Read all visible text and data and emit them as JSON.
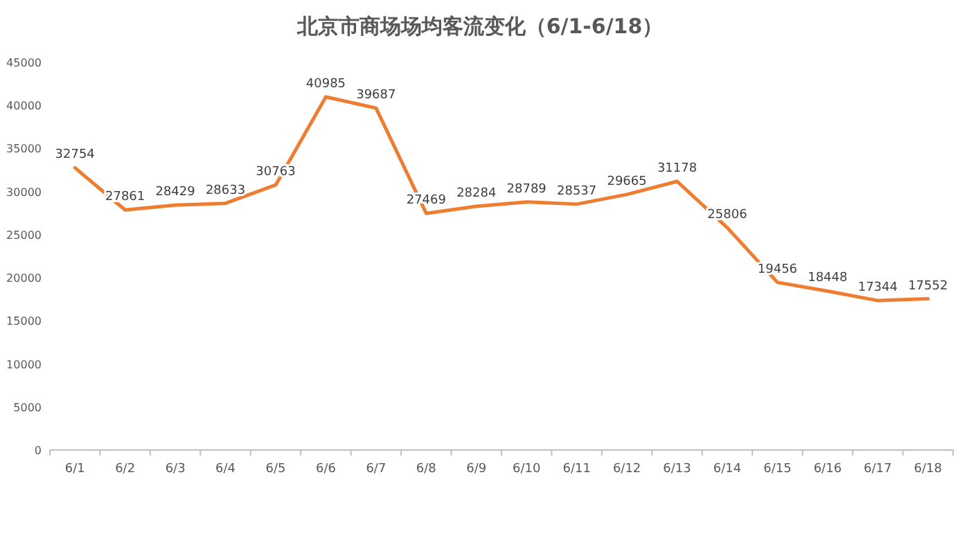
{
  "chart_data": {
    "type": "line",
    "title": "北京市商场场均客流变化（6/1-6/18）",
    "categories": [
      "6/1",
      "6/2",
      "6/3",
      "6/4",
      "6/5",
      "6/6",
      "6/7",
      "6/8",
      "6/9",
      "6/10",
      "6/11",
      "6/12",
      "6/13",
      "6/14",
      "6/15",
      "6/16",
      "6/17",
      "6/18"
    ],
    "values": [
      32754,
      27861,
      28429,
      28633,
      30763,
      40985,
      39687,
      27469,
      28284,
      28789,
      28537,
      29665,
      31178,
      25806,
      19456,
      18448,
      17344,
      17552
    ],
    "color": "#ed7d31",
    "ylim": [
      0,
      45000
    ],
    "yticks": [
      0,
      5000,
      10000,
      15000,
      20000,
      25000,
      30000,
      35000,
      40000,
      45000
    ],
    "data_labels": true
  }
}
